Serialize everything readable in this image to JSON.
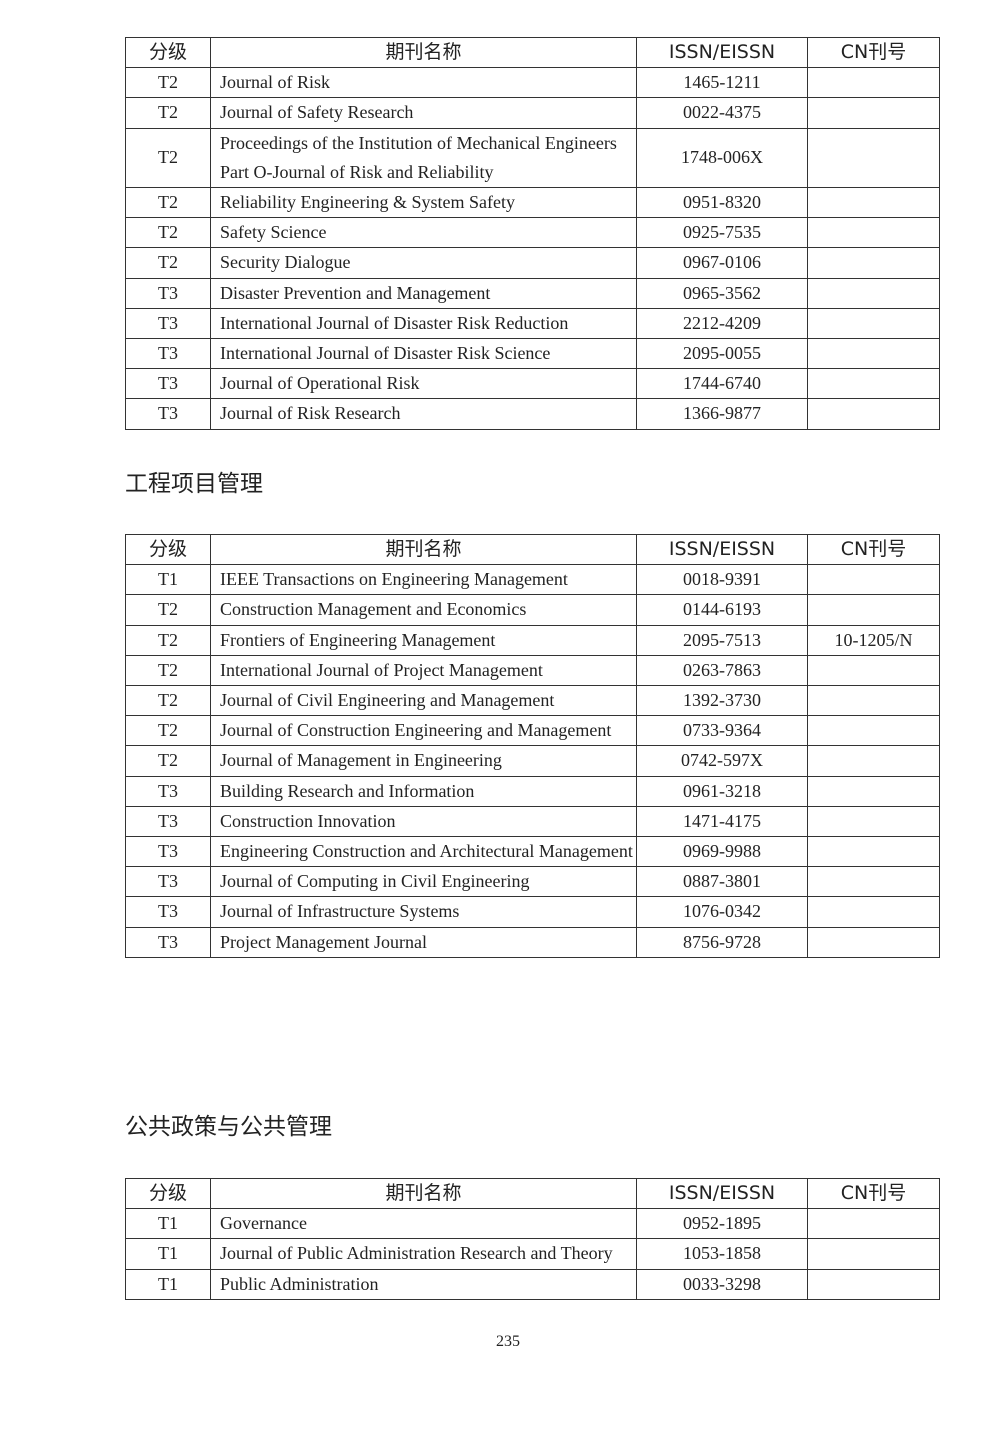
{
  "columns": {
    "tier": "分级",
    "name": "期刊名称",
    "issn": "ISSN/EISSN",
    "cn": "CN刊号"
  },
  "sections": [
    {
      "title": "",
      "rows": [
        {
          "tier": "T2",
          "name": "Journal of Risk",
          "issn": "1465-1211",
          "cn": ""
        },
        {
          "tier": "T2",
          "name": "Journal of Safety Research",
          "issn": "0022-4375",
          "cn": ""
        },
        {
          "tier": "T2",
          "name": "Proceedings of the Institution of Mechanical Engineers Part O-Journal of Risk and Reliability",
          "issn": "1748-006X",
          "cn": ""
        },
        {
          "tier": "T2",
          "name": "Reliability Engineering & System Safety",
          "issn": "0951-8320",
          "cn": ""
        },
        {
          "tier": "T2",
          "name": "Safety Science",
          "issn": "0925-7535",
          "cn": ""
        },
        {
          "tier": "T2",
          "name": "Security Dialogue",
          "issn": "0967-0106",
          "cn": ""
        },
        {
          "tier": "T3",
          "name": "Disaster Prevention and Management",
          "issn": "0965-3562",
          "cn": ""
        },
        {
          "tier": "T3",
          "name": "International Journal of Disaster Risk Reduction",
          "issn": "2212-4209",
          "cn": ""
        },
        {
          "tier": "T3",
          "name": "International Journal of Disaster Risk Science",
          "issn": "2095-0055",
          "cn": ""
        },
        {
          "tier": "T3",
          "name": "Journal of Operational Risk",
          "issn": "1744-6740",
          "cn": ""
        },
        {
          "tier": "T3",
          "name": "Journal of Risk Research",
          "issn": "1366-9877",
          "cn": ""
        }
      ]
    },
    {
      "title": "工程项目管理",
      "rows": [
        {
          "tier": "T1",
          "name": "IEEE Transactions on Engineering Management",
          "issn": "0018-9391",
          "cn": ""
        },
        {
          "tier": "T2",
          "name": "Construction Management and Economics",
          "issn": "0144-6193",
          "cn": ""
        },
        {
          "tier": "T2",
          "name": "Frontiers of Engineering Management",
          "issn": "2095-7513",
          "cn": "10-1205/N"
        },
        {
          "tier": "T2",
          "name": "International Journal of Project Management",
          "issn": "0263-7863",
          "cn": ""
        },
        {
          "tier": "T2",
          "name": "Journal of Civil Engineering and Management",
          "issn": "1392-3730",
          "cn": ""
        },
        {
          "tier": "T2",
          "name": "Journal of Construction Engineering and Management",
          "issn": "0733-9364",
          "cn": ""
        },
        {
          "tier": "T2",
          "name": "Journal of Management in Engineering",
          "issn": "0742-597X",
          "cn": ""
        },
        {
          "tier": "T3",
          "name": "Building Research and Information",
          "issn": "0961-3218",
          "cn": ""
        },
        {
          "tier": "T3",
          "name": "Construction Innovation",
          "issn": "1471-4175",
          "cn": ""
        },
        {
          "tier": "T3",
          "name": "Engineering Construction and Architectural Management",
          "issn": "0969-9988",
          "cn": ""
        },
        {
          "tier": "T3",
          "name": "Journal of Computing in Civil Engineering",
          "issn": "0887-3801",
          "cn": ""
        },
        {
          "tier": "T3",
          "name": "Journal of Infrastructure Systems",
          "issn": "1076-0342",
          "cn": ""
        },
        {
          "tier": "T3",
          "name": "Project Management Journal",
          "issn": "8756-9728",
          "cn": ""
        }
      ]
    },
    {
      "title": "公共政策与公共管理",
      "rows": [
        {
          "tier": "T1",
          "name": "Governance",
          "issn": "0952-1895",
          "cn": ""
        },
        {
          "tier": "T1",
          "name": "Journal of Public Administration Research and Theory",
          "issn": "1053-1858",
          "cn": ""
        },
        {
          "tier": "T1",
          "name": "Public Administration",
          "issn": "0033-3298",
          "cn": ""
        }
      ]
    }
  ],
  "page_number": "235"
}
